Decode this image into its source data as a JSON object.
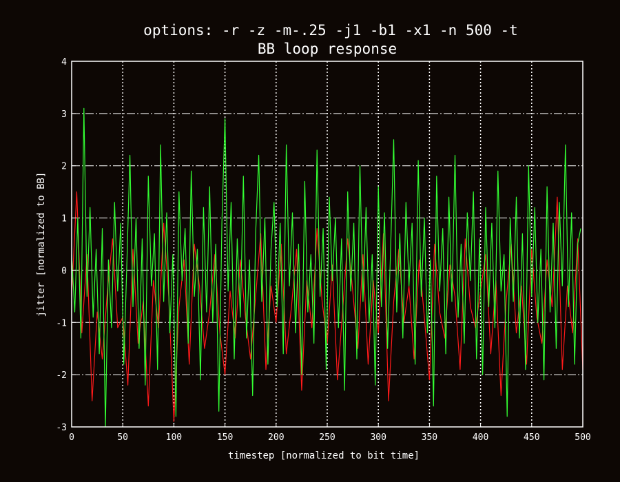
{
  "chart_data": {
    "type": "line",
    "title": "options:  -r -z -m-.25 -j1 -b1 -x1 -n 500 -t",
    "subtitle": "BB loop response",
    "xlabel": "timestep [normalized to bit time]",
    "ylabel": "jitter [normalized to BB]",
    "xlim": [
      0,
      500
    ],
    "ylim": [
      -3,
      4
    ],
    "x_ticks": [
      0,
      50,
      100,
      150,
      200,
      250,
      300,
      350,
      400,
      450,
      500
    ],
    "y_ticks": [
      -3,
      -2,
      -1,
      0,
      1,
      2,
      3,
      4
    ],
    "grid": true,
    "legend": "none",
    "background_color": "#0d0704",
    "series": [
      {
        "color": "#ff1a1a",
        "x": [
          0,
          5,
          10,
          15,
          20,
          25,
          30,
          35,
          40,
          45,
          50,
          55,
          60,
          65,
          70,
          75,
          80,
          85,
          90,
          95,
          100,
          105,
          110,
          115,
          120,
          125,
          130,
          135,
          140,
          145,
          150,
          155,
          160,
          165,
          170,
          175,
          180,
          185,
          190,
          195,
          200,
          205,
          210,
          215,
          220,
          225,
          230,
          235,
          240,
          245,
          250,
          255,
          260,
          265,
          270,
          275,
          280,
          285,
          290,
          295,
          300,
          305,
          310,
          315,
          320,
          325,
          330,
          335,
          340,
          345,
          350,
          355,
          360,
          365,
          370,
          375,
          380,
          385,
          390,
          395,
          400,
          405,
          410,
          415,
          420,
          425,
          430,
          435,
          440,
          445,
          450,
          455,
          460,
          465,
          470,
          475,
          480,
          485,
          490,
          495,
          500
        ],
        "values": [
          -0.5,
          1.5,
          -1.2,
          0.3,
          -2.5,
          -0.8,
          -1.7,
          -0.4,
          0.6,
          -1.1,
          -0.9,
          -2.2,
          0.4,
          -1.4,
          -0.6,
          -2.6,
          -0.2,
          -1.1,
          0.9,
          -0.5,
          -2.9,
          -0.7,
          0.2,
          -1.8,
          0.5,
          -0.3,
          -1.5,
          -0.8,
          0.3,
          -1.2,
          -2.0,
          -0.4,
          -1.3,
          0.2,
          -0.9,
          -1.7,
          -0.5,
          0.7,
          -1.9,
          -0.3,
          -1.0,
          0.5,
          -1.6,
          -0.7,
          0.4,
          -2.3,
          -0.2,
          -1.1,
          0.8,
          -0.6,
          -1.4,
          0.1,
          -2.1,
          -0.8,
          0.6,
          -0.4,
          -1.5,
          0.3,
          -1.8,
          -0.2,
          -1.2,
          0.7,
          -2.5,
          -0.6,
          0.4,
          -1.0,
          -0.3,
          -1.7,
          0.2,
          -0.9,
          -2.1,
          0.5,
          -0.8,
          -1.3,
          0.1,
          -0.5,
          -1.9,
          0.6,
          -0.7,
          -1.1,
          -0.4,
          0.3,
          -1.6,
          -0.2,
          -2.4,
          -0.6,
          0.5,
          -1.2,
          -0.3,
          -1.8,
          0.4,
          -0.9,
          -1.4,
          0.2,
          -0.7,
          1.4,
          -1.9,
          -0.3,
          -1.2,
          0.6,
          -1.9
        ]
      },
      {
        "color": "#33ff33",
        "x": [
          0,
          3,
          6,
          9,
          12,
          15,
          18,
          21,
          24,
          27,
          30,
          33,
          36,
          39,
          42,
          45,
          48,
          51,
          54,
          57,
          60,
          63,
          66,
          69,
          72,
          75,
          78,
          81,
          84,
          87,
          90,
          93,
          96,
          99,
          102,
          105,
          108,
          111,
          114,
          117,
          120,
          123,
          126,
          129,
          132,
          135,
          138,
          141,
          144,
          147,
          150,
          153,
          156,
          159,
          162,
          165,
          168,
          171,
          174,
          177,
          180,
          183,
          186,
          189,
          192,
          195,
          198,
          201,
          204,
          207,
          210,
          213,
          216,
          219,
          222,
          225,
          228,
          231,
          234,
          237,
          240,
          243,
          246,
          249,
          252,
          255,
          258,
          261,
          264,
          267,
          270,
          273,
          276,
          279,
          282,
          285,
          288,
          291,
          294,
          297,
          300,
          303,
          306,
          309,
          312,
          315,
          318,
          321,
          324,
          327,
          330,
          333,
          336,
          339,
          342,
          345,
          348,
          351,
          354,
          357,
          360,
          363,
          366,
          369,
          372,
          375,
          378,
          381,
          384,
          387,
          390,
          393,
          396,
          399,
          402,
          405,
          408,
          411,
          414,
          417,
          420,
          423,
          426,
          429,
          432,
          435,
          438,
          441,
          444,
          447,
          450,
          453,
          456,
          459,
          462,
          465,
          468,
          471,
          474,
          477,
          480,
          483,
          486,
          489,
          492,
          495,
          498
        ],
        "values": [
          0.3,
          -0.8,
          1.0,
          -1.3,
          3.1,
          -0.5,
          1.2,
          -0.9,
          0.4,
          -1.6,
          0.8,
          -3.0,
          0.2,
          -1.1,
          1.3,
          -0.4,
          0.9,
          -1.8,
          0.1,
          2.2,
          -0.7,
          1.0,
          -1.5,
          0.6,
          -2.2,
          1.8,
          -0.3,
          0.7,
          -1.9,
          2.4,
          -0.6,
          1.1,
          -1.2,
          0.3,
          -2.8,
          1.5,
          -0.2,
          0.8,
          -1.4,
          1.9,
          -0.5,
          0.4,
          -2.1,
          1.2,
          -0.8,
          1.6,
          -1.0,
          0.5,
          -2.7,
          0.9,
          2.9,
          -0.4,
          1.3,
          -1.7,
          0.6,
          -0.9,
          1.8,
          -1.3,
          0.2,
          -2.4,
          0.7,
          2.2,
          -0.6,
          1.0,
          -1.8,
          0.4,
          1.3,
          -0.7,
          0.9,
          -1.6,
          2.4,
          -0.3,
          1.1,
          -1.2,
          0.5,
          -2.0,
          1.7,
          -0.8,
          0.3,
          -1.4,
          2.3,
          -0.5,
          0.8,
          -1.9,
          1.4,
          -0.2,
          1.0,
          -1.1,
          0.6,
          -2.3,
          1.5,
          -0.4,
          0.9,
          -1.7,
          2.0,
          -0.6,
          1.2,
          -1.0,
          0.3,
          -2.2,
          1.6,
          -0.7,
          1.1,
          -1.5,
          0.4,
          2.5,
          -0.8,
          0.7,
          -1.3,
          1.3,
          -0.3,
          0.9,
          -1.8,
          2.1,
          -0.5,
          1.0,
          -1.2,
          0.2,
          -2.6,
          1.8,
          -0.4,
          0.8,
          -1.6,
          1.4,
          -0.6,
          2.2,
          -0.9,
          0.5,
          -1.4,
          1.1,
          -0.2,
          1.5,
          -1.7,
          0.6,
          -2.0,
          1.2,
          -0.7,
          0.9,
          -1.1,
          1.9,
          -0.4,
          0.3,
          -2.8,
          1.0,
          -0.6,
          1.4,
          -1.3,
          0.7,
          -1.9,
          2.0,
          -0.5,
          1.2,
          -1.0,
          0.4,
          -2.1,
          1.6,
          -0.8,
          0.9,
          -1.5,
          1.3,
          -0.3,
          2.4,
          -0.7,
          1.1,
          -1.8,
          0.5,
          0.8
        ]
      }
    ]
  }
}
